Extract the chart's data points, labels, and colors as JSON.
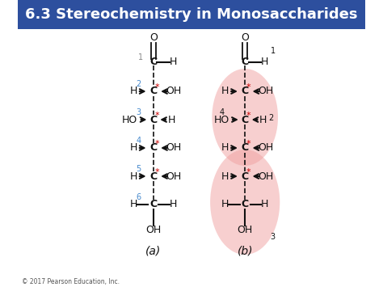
{
  "title": "6.3 Stereochemistry in Monosaccharides",
  "title_bg": "#2d4f9e",
  "title_color": "#ffffff",
  "bg_color": "#f5f5f5",
  "molecule_bg": "#ffffff",
  "pink_color": "#f0a0a0",
  "pink_alpha": 0.5,
  "label_a": "(a)",
  "label_b": "(b)",
  "copyright": "© 2017 Pearson Education, Inc.",
  "carbon_color": "#cc0000",
  "arrow_color": "#333333",
  "text_color": "#111111"
}
